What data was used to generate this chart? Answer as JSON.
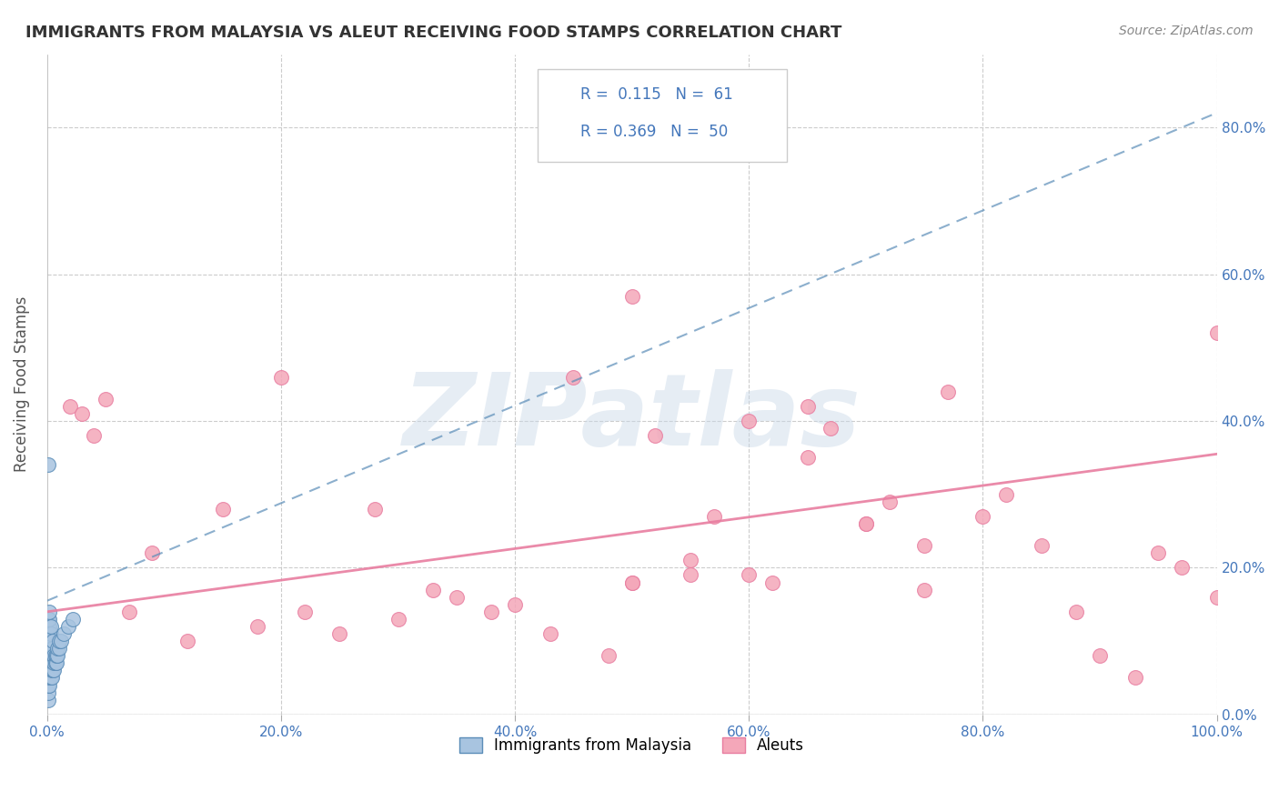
{
  "title": "IMMIGRANTS FROM MALAYSIA VS ALEUT RECEIVING FOOD STAMPS CORRELATION CHART",
  "source": "Source: ZipAtlas.com",
  "ylabel": "Receiving Food Stamps",
  "watermark": "ZIPatlas",
  "legend_label_blue": "Immigrants from Malaysia",
  "legend_label_pink": "Aleuts",
  "blue_color": "#a8c4e0",
  "pink_color": "#f4a7b9",
  "blue_line_color": "#5b8db8",
  "pink_line_color": "#e87da0",
  "title_color": "#333333",
  "source_color": "#888888",
  "axis_label_color": "#4477bb",
  "xlim": [
    0.0,
    1.0
  ],
  "ylim": [
    0.0,
    0.9
  ],
  "xticks": [
    0.0,
    0.2,
    0.4,
    0.6,
    0.8,
    1.0
  ],
  "yticks": [
    0.0,
    0.2,
    0.4,
    0.6,
    0.8
  ],
  "xtick_labels": [
    "0.0%",
    "20.0%",
    "40.0%",
    "60.0%",
    "80.0%",
    "100.0%"
  ],
  "ytick_labels_right": [
    "0.0%",
    "20.0%",
    "40.0%",
    "60.0%",
    "80.0%"
  ],
  "blue_scatter_x": [
    0.001,
    0.001,
    0.001,
    0.001,
    0.001,
    0.001,
    0.001,
    0.001,
    0.001,
    0.001,
    0.001,
    0.001,
    0.001,
    0.001,
    0.001,
    0.002,
    0.002,
    0.002,
    0.002,
    0.002,
    0.002,
    0.002,
    0.002,
    0.002,
    0.002,
    0.002,
    0.002,
    0.003,
    0.003,
    0.003,
    0.003,
    0.003,
    0.003,
    0.003,
    0.003,
    0.004,
    0.004,
    0.004,
    0.004,
    0.004,
    0.005,
    0.005,
    0.005,
    0.005,
    0.005,
    0.006,
    0.006,
    0.006,
    0.007,
    0.007,
    0.008,
    0.008,
    0.009,
    0.009,
    0.01,
    0.01,
    0.012,
    0.014,
    0.018,
    0.022,
    0.001
  ],
  "blue_scatter_y": [
    0.02,
    0.03,
    0.04,
    0.05,
    0.06,
    0.06,
    0.07,
    0.08,
    0.09,
    0.1,
    0.1,
    0.11,
    0.11,
    0.12,
    0.13,
    0.04,
    0.05,
    0.06,
    0.07,
    0.08,
    0.09,
    0.1,
    0.1,
    0.11,
    0.12,
    0.13,
    0.14,
    0.05,
    0.06,
    0.07,
    0.08,
    0.09,
    0.1,
    0.11,
    0.12,
    0.05,
    0.06,
    0.07,
    0.08,
    0.09,
    0.06,
    0.07,
    0.08,
    0.09,
    0.1,
    0.06,
    0.07,
    0.08,
    0.07,
    0.08,
    0.07,
    0.08,
    0.08,
    0.09,
    0.09,
    0.1,
    0.1,
    0.11,
    0.12,
    0.13,
    0.34
  ],
  "pink_scatter_x": [
    0.02,
    0.03,
    0.04,
    0.05,
    0.07,
    0.09,
    0.12,
    0.15,
    0.18,
    0.2,
    0.22,
    0.25,
    0.28,
    0.3,
    0.33,
    0.35,
    0.38,
    0.4,
    0.43,
    0.45,
    0.48,
    0.5,
    0.5,
    0.52,
    0.55,
    0.57,
    0.6,
    0.62,
    0.65,
    0.67,
    0.7,
    0.72,
    0.75,
    0.77,
    0.8,
    0.82,
    0.85,
    0.88,
    0.9,
    0.93,
    0.95,
    0.97,
    1.0,
    1.0,
    0.5,
    0.55,
    0.6,
    0.65,
    0.7,
    0.75
  ],
  "pink_scatter_y": [
    0.42,
    0.41,
    0.38,
    0.43,
    0.14,
    0.22,
    0.1,
    0.28,
    0.12,
    0.46,
    0.14,
    0.11,
    0.28,
    0.13,
    0.17,
    0.16,
    0.14,
    0.15,
    0.11,
    0.46,
    0.08,
    0.18,
    0.57,
    0.38,
    0.19,
    0.27,
    0.4,
    0.18,
    0.42,
    0.39,
    0.26,
    0.29,
    0.17,
    0.44,
    0.27,
    0.3,
    0.23,
    0.14,
    0.08,
    0.05,
    0.22,
    0.2,
    0.52,
    0.16,
    0.18,
    0.21,
    0.19,
    0.35,
    0.26,
    0.23
  ],
  "blue_trendline_y_start": 0.155,
  "blue_trendline_y_end": 0.82,
  "pink_trendline_y_start": 0.14,
  "pink_trendline_y_end": 0.355,
  "figsize": [
    14.06,
    8.92
  ],
  "dpi": 100
}
